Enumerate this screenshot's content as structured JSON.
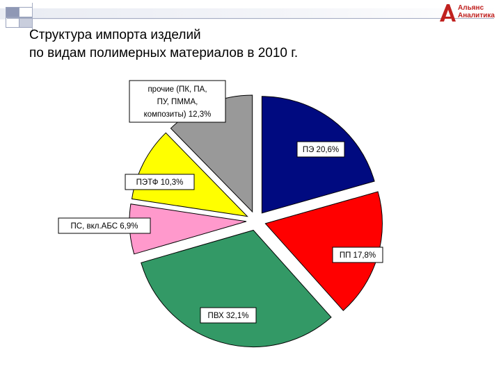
{
  "logo": {
    "text": "Альянс\nАналитика",
    "color": "#c0211f"
  },
  "title_lines": [
    "Структура импорта изделий",
    "по видам полимерных материалов в 2010 г."
  ],
  "chart_data": {
    "type": "pie",
    "title": "Структура импорта изделий по видам полимерных материалов в 2010 г.",
    "unit": "%",
    "exploded": true,
    "legend": "none",
    "slices": [
      {
        "name": "ПЭ",
        "value": 20.6,
        "label": [
          "ПЭ 20,6%"
        ],
        "color": "#000a80"
      },
      {
        "name": "ПП",
        "value": 17.8,
        "label": [
          "ПП 17,8%"
        ],
        "color": "#ff0000"
      },
      {
        "name": "ПВХ",
        "value": 32.1,
        "label": [
          "ПВХ 32,1%"
        ],
        "color": "#339966"
      },
      {
        "name": "ПС, вкл.АБС",
        "value": 6.9,
        "label": [
          "ПС, вкл.АБС 6,9%"
        ],
        "color": "#ff99cc"
      },
      {
        "name": "ПЭТФ",
        "value": 10.3,
        "label": [
          "ПЭТФ 10,3%"
        ],
        "color": "#ffff00"
      },
      {
        "name": "прочие (ПК, ПА, ПУ, ПММА, композиты)",
        "value": 12.3,
        "label": [
          "прочие (ПК, ПА,",
          "ПУ, ПММА,",
          "композиты) 12,3%"
        ],
        "color": "#999999"
      }
    ]
  }
}
